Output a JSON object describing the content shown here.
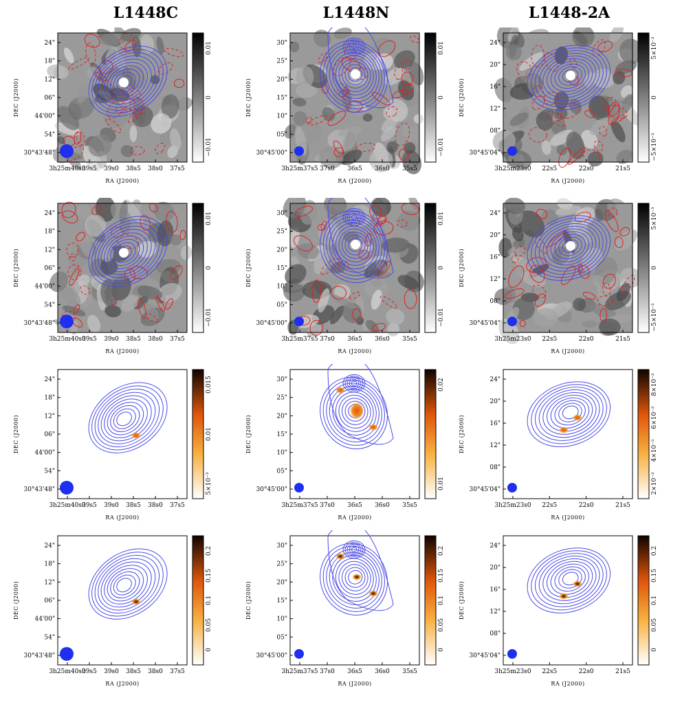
{
  "columns": [
    {
      "title": "L1448C",
      "yticks": [
        "24\"",
        "18\"",
        "12\"",
        "06\"",
        "44'00\"",
        "54\"",
        "30°43'48\""
      ],
      "xticks": [
        "3h25m40s0",
        "39s5",
        "39s0",
        "38s5",
        "38s0",
        "37s5"
      ]
    },
    {
      "title": "L1448N",
      "yticks": [
        "30\"",
        "25\"",
        "20\"",
        "15\"",
        "10\"",
        "05\"",
        "30°45'00\""
      ],
      "xticks": [
        "3h25m37s5",
        "37s0",
        "36s5",
        "36s0",
        "35s5"
      ]
    },
    {
      "title": "L1448-2A",
      "yticks": [
        "24\"",
        "20\"",
        "16\"",
        "12\"",
        "08\"",
        "30°45'04\""
      ],
      "xticks": [
        "3h25m23s0",
        "22s5",
        "22s0",
        "21s5"
      ]
    }
  ],
  "axes": {
    "ylabel": "DEC (J2000)",
    "xlabel": "RA (J2000)"
  },
  "colorbars": [
    [
      [
        "0.01",
        "0",
        "−0.01"
      ],
      [
        "0.01",
        "0",
        "−0.01"
      ],
      [
        "5×10⁻³",
        "0",
        "−5×10⁻³"
      ]
    ],
    [
      [
        "0.01",
        "0",
        "−0.01"
      ],
      [
        "0.01",
        "0",
        "−0.01"
      ],
      [
        "5×10⁻³",
        "0",
        "−5×10⁻³"
      ]
    ],
    [
      [
        "0.015",
        "0.01",
        "5×10⁻³"
      ],
      [
        "0.02",
        "0.01"
      ],
      [
        "8×10⁻³",
        "6×10⁻³",
        "4×10⁻³",
        "2×10⁻³"
      ]
    ],
    [
      [
        "0.2",
        "0.15",
        "0.1",
        "0.05",
        "0"
      ],
      [
        "0.2",
        "0.15",
        "0.1",
        "0.05",
        "0"
      ],
      [
        "0.2",
        "0.15",
        "0.1",
        "0.05",
        "0"
      ]
    ]
  ],
  "colors": {
    "contour_pos": "#4a4ae6",
    "contour_neg": "#e02020",
    "beam": "#1f2ff0"
  }
}
